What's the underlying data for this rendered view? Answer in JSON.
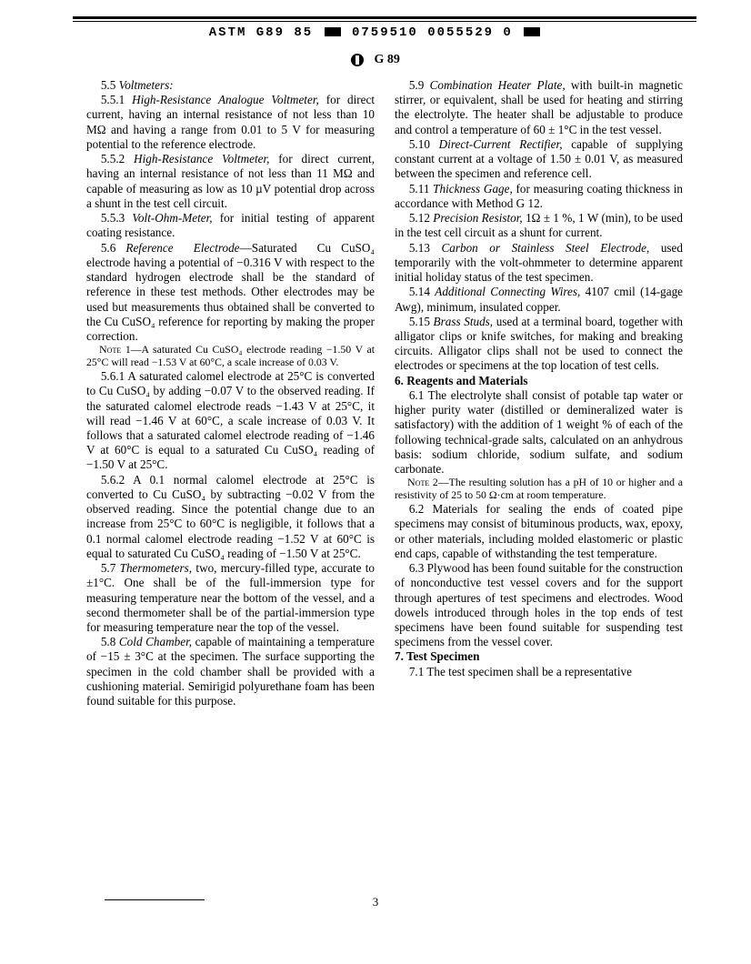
{
  "header": {
    "code_left": "ASTM G89 85",
    "code_mid": "0759510 0055529 0",
    "doc_label": "G 89"
  },
  "body": {
    "p1": "5.5 Voltmeters:",
    "p2": "5.5.1 High-Resistance Analogue Voltmeter, for direct current, having an internal resistance of not less than 10 MΩ and having a range from 0.01 to 5 V for measuring potential to the reference electrode.",
    "p3": "5.5.2 High-Resistance Voltmeter, for direct current, having an internal resistance of not less than 11 MΩ and capable of measuring as low as 10 µV potential drop across a shunt in the test cell circuit.",
    "p4": "5.5.3 Volt-Ohm-Meter, for initial testing of apparent coating resistance.",
    "p5": "5.6 Reference Electrode—Saturated Cu CuSO₄ electrode having a potential of −0.316 V with respect to the standard hydrogen electrode shall be the standard of reference in these test methods. Other electrodes may be used but measurements thus obtained shall be converted to the Cu CuSO₄ reference for reporting by making the proper correction.",
    "note1": "NOTE 1—A saturated Cu CuSO₄ electrode reading −1.50 V at 25°C will read −1.53 V at 60°C, a scale increase of 0.03 V.",
    "p6": "5.6.1 A saturated calomel electrode at 25°C is converted to Cu CuSO₄ by adding −0.07 V to the observed reading. If the saturated calomel electrode reads −1.43 V at 25°C, it will read −1.46 V at 60°C, a scale increase of 0.03 V. It follows that a saturated calomel electrode reading of −1.46 V at 60°C is equal to a saturated Cu CuSO₄ reading of −1.50 V at 25°C.",
    "p7": "5.6.2 A 0.1 normal calomel electrode at 25°C is converted to Cu CuSO₄ by subtracting −0.02 V from the observed reading. Since the potential change due to an increase from 25°C to 60°C is negligible, it follows that a 0.1 normal calomel electrode reading −1.52 V at 60°C is equal to saturated Cu CuSO₄ reading of −1.50 V at 25°C.",
    "p8": "5.7 Thermometers, two, mercury-filled type, accurate to ±1°C. One shall be of the full-immersion type for measuring temperature near the bottom of the vessel, and a second thermometer shall be of the partial-immersion type for measuring temperature near the top of the vessel.",
    "p9": "5.8 Cold Chamber, capable of maintaining a temperature of −15 ± 3°C at the specimen. The surface supporting the specimen in the cold chamber shall be provided with a cushioning material. Semirigid polyurethane foam has been found suitable for this purpose.",
    "p10": "5.9 Combination Heater Plate, with built-in magnetic stirrer, or equivalent, shall be used for heating and stirring the electrolyte. The heater shall be adjustable to produce and control a temperature of 60 ± 1°C in the test vessel.",
    "p11": "5.10 Direct-Current Rectifier, capable of supplying constant current at a voltage of 1.50 ± 0.01 V, as measured between the specimen and reference cell.",
    "p12": "5.11 Thickness Gage, for measuring coating thickness in accordance with Method G 12.",
    "p13": "5.12 Precision Resistor, 1Ω ± 1 %, 1 W (min), to be used in the test cell circuit as a shunt for current.",
    "p14": "5.13 Carbon or Stainless Steel Electrode, used temporarily with the volt-ohmmeter to determine apparent initial holiday status of the test specimen.",
    "p15": "5.14 Additional Connecting Wires, 4107 cmil (14-gage Awg), minimum, insulated copper.",
    "p16": "5.15 Brass Studs, used at a terminal board, together with alligator clips or knife switches, for making and breaking circuits. Alligator clips shall not be used to connect the electrodes or specimens at the top location of test cells.",
    "sec6": "6. Reagents and Materials",
    "p17": "6.1 The electrolyte shall consist of potable tap water or higher purity water (distilled or demineralized water is satisfactory) with the addition of 1 weight % of each of the following technical-grade salts, calculated on an anhydrous basis: sodium chloride, sodium sulfate, and sodium carbonate.",
    "note2": "NOTE 2—The resulting solution has a pH of 10 or higher and a resistivity of 25 to 50 Ω·cm at room temperature.",
    "p18": "6.2 Materials for sealing the ends of coated pipe specimens may consist of bituminous products, wax, epoxy, or other materials, including molded elastomeric or plastic end caps, capable of withstanding the test temperature.",
    "p19": "6.3 Plywood has been found suitable for the construction of nonconductive test vessel covers and for the support through apertures of test specimens and electrodes. Wood dowels introduced through holes in the top ends of test specimens have been found suitable for suspending test specimens from the vessel cover.",
    "sec7": "7. Test Specimen",
    "p20": "7.1 The test specimen shall be a representative"
  },
  "page_number": "3"
}
